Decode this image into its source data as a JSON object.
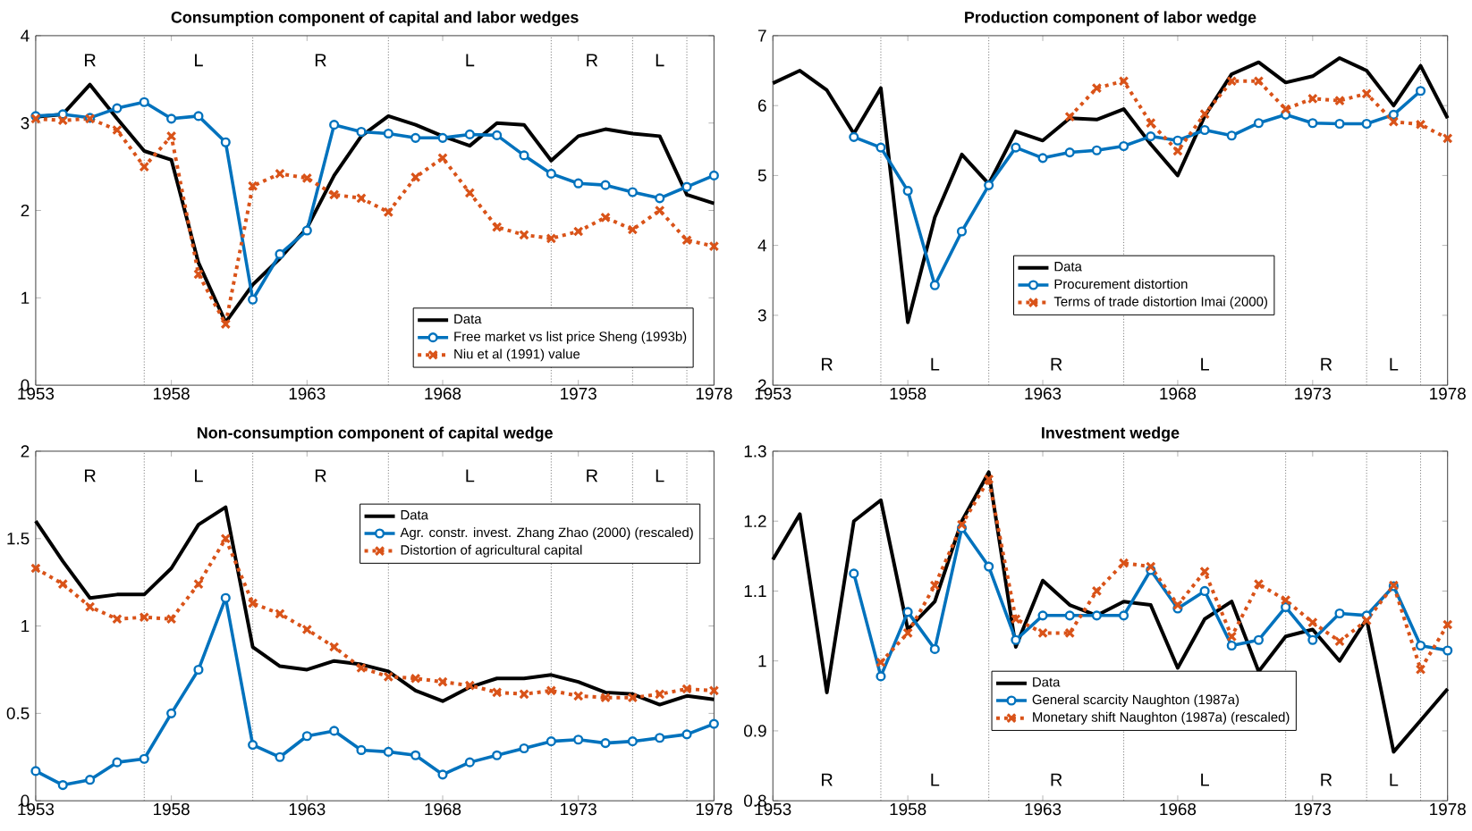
{
  "chart_data": [
    {
      "type": "line",
      "title": "Consumption component of capital and labor wedges",
      "x": [
        1953,
        1954,
        1955,
        1956,
        1957,
        1958,
        1959,
        1960,
        1961,
        1962,
        1963,
        1964,
        1965,
        1966,
        1967,
        1968,
        1969,
        1970,
        1971,
        1972,
        1973,
        1974,
        1975,
        1976,
        1977,
        1978
      ],
      "series": [
        {
          "name": "Data",
          "color": "#000000",
          "marker": "none",
          "line_style": "solid",
          "values": [
            3.07,
            3.1,
            3.44,
            3.05,
            2.68,
            2.58,
            1.4,
            0.72,
            1.15,
            1.45,
            1.8,
            2.4,
            2.85,
            3.08,
            2.98,
            2.85,
            2.74,
            3.0,
            2.98,
            2.57,
            2.85,
            2.93,
            2.88,
            2.85,
            2.18,
            2.08
          ]
        },
        {
          "name": "Free market vs list price Sheng (1993b)",
          "color": "#0072bd",
          "marker": "circle",
          "line_style": "solid",
          "values": [
            3.08,
            3.1,
            3.06,
            3.17,
            3.24,
            3.05,
            3.08,
            2.78,
            0.98,
            1.5,
            1.77,
            2.98,
            2.9,
            2.88,
            2.83,
            2.83,
            2.87,
            2.86,
            2.63,
            2.42,
            2.31,
            2.29,
            2.21,
            2.14,
            2.27,
            2.4
          ]
        },
        {
          "name": "Niu et al (1991) value",
          "color": "#d95319",
          "marker": "cross",
          "line_style": "dotted",
          "values": [
            3.05,
            3.03,
            3.05,
            2.92,
            2.5,
            2.85,
            1.27,
            0.7,
            2.28,
            2.42,
            2.37,
            2.18,
            2.14,
            1.98,
            2.38,
            2.6,
            2.2,
            1.81,
            1.72,
            1.68,
            1.76,
            1.92,
            1.78,
            2.0,
            1.66,
            1.59
          ]
        }
      ],
      "xlim": [
        1953,
        1978
      ],
      "xticks": [
        1953,
        1958,
        1963,
        1968,
        1973,
        1978
      ],
      "ylim": [
        0,
        4
      ],
      "yticks": [
        0,
        1,
        2,
        3,
        4
      ],
      "legend": "bottom right",
      "ref_lines": [
        {
          "axis": "x",
          "value": 1957,
          "color": "#808080",
          "line_style": "dotted"
        },
        {
          "axis": "x",
          "value": 1961,
          "color": "#808080",
          "line_style": "dotted"
        },
        {
          "axis": "x",
          "value": 1966,
          "color": "#808080",
          "line_style": "dotted"
        },
        {
          "axis": "x",
          "value": 1972,
          "color": "#808080",
          "line_style": "dotted"
        },
        {
          "axis": "x",
          "value": 1975,
          "color": "#808080",
          "line_style": "dotted"
        },
        {
          "axis": "x",
          "value": 1977,
          "color": "#808080",
          "line_style": "dotted"
        }
      ],
      "annotations": [
        "R",
        "L",
        "R",
        "L",
        "R",
        "L"
      ]
    },
    {
      "type": "line",
      "title": "Production component of labor wedge",
      "x": [
        1953,
        1954,
        1955,
        1956,
        1957,
        1958,
        1959,
        1960,
        1961,
        1962,
        1963,
        1964,
        1965,
        1966,
        1967,
        1968,
        1969,
        1970,
        1971,
        1972,
        1973,
        1974,
        1975,
        1976,
        1977,
        1978
      ],
      "series": [
        {
          "name": "Data",
          "color": "#000000",
          "marker": "none",
          "line_style": "solid",
          "values": [
            6.32,
            6.5,
            6.22,
            5.6,
            6.25,
            2.9,
            4.4,
            5.3,
            4.88,
            5.63,
            5.5,
            5.82,
            5.8,
            5.95,
            5.45,
            5.0,
            5.85,
            6.45,
            6.62,
            6.33,
            6.42,
            6.68,
            6.5,
            6.0,
            6.57,
            5.82
          ]
        },
        {
          "name": "Procurement distortion",
          "color": "#0072bd",
          "marker": "circle",
          "line_style": "solid",
          "values": [
            null,
            null,
            null,
            5.55,
            5.4,
            4.78,
            3.43,
            4.2,
            4.86,
            5.4,
            5.25,
            5.33,
            5.36,
            5.42,
            5.56,
            5.5,
            5.65,
            5.57,
            5.75,
            5.87,
            5.75,
            5.74,
            5.74,
            5.87,
            6.21,
            null
          ]
        },
        {
          "name": "Terms of trade distortion Imai (2000)",
          "color": "#d95319",
          "marker": "cross",
          "line_style": "dotted",
          "values": [
            null,
            null,
            null,
            null,
            null,
            null,
            null,
            null,
            null,
            null,
            null,
            5.84,
            6.25,
            6.35,
            5.75,
            5.35,
            5.88,
            6.35,
            6.35,
            5.95,
            6.1,
            6.07,
            6.17,
            5.77,
            5.73,
            5.53
          ]
        }
      ],
      "xlim": [
        1953,
        1978
      ],
      "xticks": [
        1953,
        1958,
        1963,
        1968,
        1973,
        1978
      ],
      "ylim": [
        2,
        7
      ],
      "yticks": [
        2,
        3,
        4,
        5,
        6,
        7
      ],
      "legend": "bottom",
      "ref_lines": [
        {
          "axis": "x",
          "value": 1957,
          "color": "#808080",
          "line_style": "dotted"
        },
        {
          "axis": "x",
          "value": 1961,
          "color": "#808080",
          "line_style": "dotted"
        },
        {
          "axis": "x",
          "value": 1966,
          "color": "#808080",
          "line_style": "dotted"
        },
        {
          "axis": "x",
          "value": 1972,
          "color": "#808080",
          "line_style": "dotted"
        },
        {
          "axis": "x",
          "value": 1975,
          "color": "#808080",
          "line_style": "dotted"
        },
        {
          "axis": "x",
          "value": 1977,
          "color": "#808080",
          "line_style": "dotted"
        }
      ],
      "annotations": [
        "R",
        "L",
        "R",
        "L",
        "R",
        "L"
      ]
    },
    {
      "type": "line",
      "title": "Non-consumption component of capital wedge",
      "x": [
        1953,
        1954,
        1955,
        1956,
        1957,
        1958,
        1959,
        1960,
        1961,
        1962,
        1963,
        1964,
        1965,
        1966,
        1967,
        1968,
        1969,
        1970,
        1971,
        1972,
        1973,
        1974,
        1975,
        1976,
        1977,
        1978
      ],
      "series": [
        {
          "name": "Data",
          "color": "#000000",
          "marker": "none",
          "line_style": "solid",
          "values": [
            1.6,
            1.37,
            1.16,
            1.18,
            1.18,
            1.33,
            1.58,
            1.68,
            0.88,
            0.77,
            0.75,
            0.8,
            0.78,
            0.74,
            0.63,
            0.57,
            0.65,
            0.7,
            0.7,
            0.72,
            0.68,
            0.62,
            0.61,
            0.55,
            0.6,
            0.58
          ]
        },
        {
          "name": "Agr. constr. invest. Zhang Zhao (2000) (rescaled)",
          "color": "#0072bd",
          "marker": "circle",
          "line_style": "solid",
          "values": [
            0.17,
            0.09,
            0.12,
            0.22,
            0.24,
            0.5,
            0.75,
            1.16,
            0.32,
            0.25,
            0.37,
            0.4,
            0.29,
            0.28,
            0.26,
            0.15,
            0.22,
            0.26,
            0.3,
            0.34,
            0.35,
            0.33,
            0.34,
            0.36,
            0.38,
            0.44
          ]
        },
        {
          "name": "Distortion of agricultural capital",
          "color": "#d95319",
          "marker": "cross",
          "line_style": "dotted",
          "values": [
            1.33,
            1.24,
            1.11,
            1.04,
            1.05,
            1.04,
            1.24,
            1.5,
            1.13,
            1.07,
            0.98,
            0.88,
            0.76,
            0.71,
            0.7,
            0.68,
            0.66,
            0.62,
            0.61,
            0.63,
            0.6,
            0.59,
            0.59,
            0.61,
            0.64,
            0.63
          ]
        }
      ],
      "xlim": [
        1953,
        1978
      ],
      "xticks": [
        1953,
        1958,
        1963,
        1968,
        1973,
        1978
      ],
      "ylim": [
        0,
        2
      ],
      "yticks": [
        0,
        0.5,
        1,
        1.5,
        2
      ],
      "legend": "top right",
      "ref_lines": [
        {
          "axis": "x",
          "value": 1957,
          "color": "#808080",
          "line_style": "dotted"
        },
        {
          "axis": "x",
          "value": 1961,
          "color": "#808080",
          "line_style": "dotted"
        },
        {
          "axis": "x",
          "value": 1966,
          "color": "#808080",
          "line_style": "dotted"
        },
        {
          "axis": "x",
          "value": 1972,
          "color": "#808080",
          "line_style": "dotted"
        },
        {
          "axis": "x",
          "value": 1975,
          "color": "#808080",
          "line_style": "dotted"
        },
        {
          "axis": "x",
          "value": 1977,
          "color": "#808080",
          "line_style": "dotted"
        }
      ],
      "annotations": [
        "R",
        "L",
        "R",
        "L",
        "R",
        "L"
      ]
    },
    {
      "type": "line",
      "title": "Investment wedge",
      "x": [
        1953,
        1954,
        1955,
        1956,
        1957,
        1958,
        1959,
        1960,
        1961,
        1962,
        1963,
        1964,
        1965,
        1966,
        1967,
        1968,
        1969,
        1970,
        1971,
        1972,
        1973,
        1974,
        1975,
        1976,
        1977,
        1978
      ],
      "series": [
        {
          "name": "Data",
          "color": "#000000",
          "marker": "none",
          "line_style": "solid",
          "values": [
            1.145,
            1.21,
            0.955,
            1.2,
            1.23,
            1.045,
            1.085,
            1.2,
            1.27,
            1.02,
            1.115,
            1.08,
            1.065,
            1.085,
            1.08,
            0.99,
            1.06,
            1.085,
            0.985,
            1.035,
            1.045,
            1.0,
            1.06,
            0.87,
            0.915,
            0.96
          ]
        },
        {
          "name": "General scarcity Naughton (1987a)",
          "color": "#0072bd",
          "marker": "circle",
          "line_style": "solid",
          "values": [
            null,
            null,
            null,
            1.125,
            0.978,
            1.07,
            1.017,
            1.19,
            1.135,
            1.03,
            1.065,
            1.065,
            1.065,
            1.065,
            1.13,
            1.075,
            1.1,
            1.022,
            1.03,
            1.077,
            1.03,
            1.068,
            1.065,
            1.107,
            1.022,
            1.015
          ]
        },
        {
          "name": "Monetary shift Naughton (1987a) (rescaled)",
          "color": "#d95319",
          "marker": "cross",
          "line_style": "dotted",
          "values": [
            null,
            null,
            null,
            null,
            0.998,
            1.04,
            1.108,
            1.195,
            1.26,
            1.06,
            1.04,
            1.04,
            1.1,
            1.14,
            1.135,
            1.08,
            1.128,
            1.035,
            1.11,
            1.087,
            1.055,
            1.028,
            1.058,
            1.108,
            0.988,
            1.052
          ]
        }
      ],
      "xlim": [
        1953,
        1978
      ],
      "xticks": [
        1953,
        1958,
        1963,
        1968,
        1973,
        1978
      ],
      "ylim": [
        0.8,
        1.3
      ],
      "yticks": [
        0.8,
        0.9,
        1,
        1.1,
        1.2,
        1.3
      ],
      "legend": "bottom",
      "ref_lines": [
        {
          "axis": "x",
          "value": 1957,
          "color": "#808080",
          "line_style": "dotted"
        },
        {
          "axis": "x",
          "value": 1961,
          "color": "#808080",
          "line_style": "dotted"
        },
        {
          "axis": "x",
          "value": 1966,
          "color": "#808080",
          "line_style": "dotted"
        },
        {
          "axis": "x",
          "value": 1972,
          "color": "#808080",
          "line_style": "dotted"
        },
        {
          "axis": "x",
          "value": 1975,
          "color": "#808080",
          "line_style": "dotted"
        },
        {
          "axis": "x",
          "value": 1977,
          "color": "#808080",
          "line_style": "dotted"
        }
      ],
      "annotations": [
        "R",
        "L",
        "R",
        "L",
        "R",
        "L"
      ]
    }
  ]
}
